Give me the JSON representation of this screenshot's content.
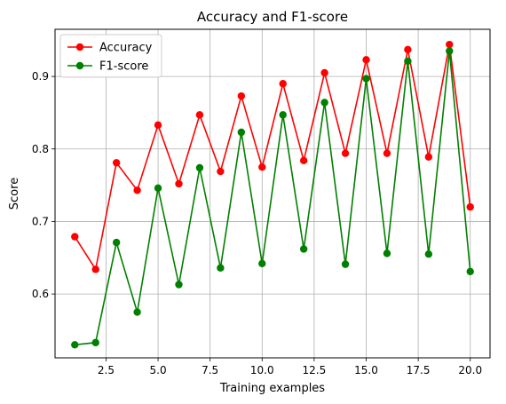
{
  "chart_data": {
    "type": "line",
    "title": "Accuracy and F1-score",
    "xlabel": "Training examples",
    "ylabel": "Score",
    "xlim": [
      0.05,
      20.95
    ],
    "ylim": [
      0.512,
      0.965
    ],
    "xticks": [
      "2.5",
      "5.0",
      "7.5",
      "10.0",
      "12.5",
      "15.0",
      "17.5",
      "20.0"
    ],
    "xtick_values": [
      2.5,
      5.0,
      7.5,
      10.0,
      12.5,
      15.0,
      17.5,
      20.0
    ],
    "yticks": [
      "0.6",
      "0.7",
      "0.8",
      "0.9"
    ],
    "ytick_values": [
      0.6,
      0.7,
      0.8,
      0.9
    ],
    "grid": true,
    "legend_position": "top-left",
    "x": [
      1,
      2,
      3,
      4,
      5,
      6,
      7,
      8,
      9,
      10,
      11,
      12,
      13,
      14,
      15,
      16,
      17,
      18,
      19,
      20
    ],
    "series": [
      {
        "name": "Accuracy",
        "color": "#ff0000",
        "values": [
          0.679,
          0.634,
          0.781,
          0.743,
          0.833,
          0.752,
          0.847,
          0.769,
          0.873,
          0.775,
          0.89,
          0.784,
          0.905,
          0.794,
          0.923,
          0.794,
          0.937,
          0.789,
          0.944,
          0.72
        ]
      },
      {
        "name": "F1-score",
        "color": "#008000",
        "values": [
          0.53,
          0.533,
          0.671,
          0.575,
          0.746,
          0.613,
          0.774,
          0.636,
          0.823,
          0.642,
          0.847,
          0.662,
          0.864,
          0.641,
          0.897,
          0.656,
          0.921,
          0.655,
          0.935,
          0.631
        ]
      }
    ]
  }
}
